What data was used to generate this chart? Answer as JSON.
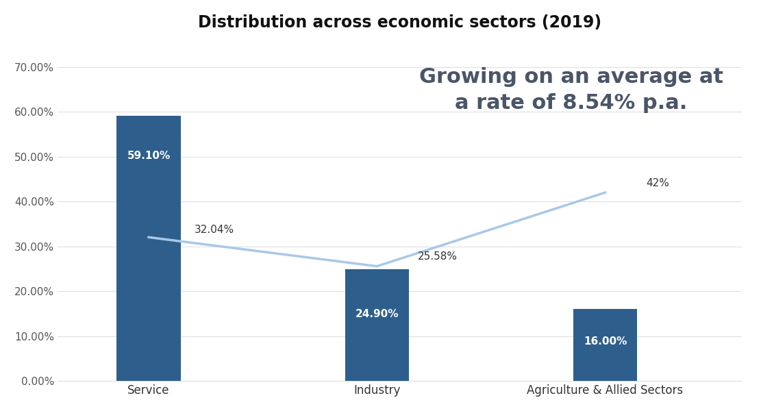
{
  "title": "Distribution across economic sectors (2019)",
  "categories": [
    "Service",
    "Industry",
    "Agriculture & Allied Sectors"
  ],
  "bar_values": [
    59.1,
    24.9,
    16.0
  ],
  "bar_labels": [
    "59.10%",
    "24.90%",
    "16.00%"
  ],
  "line_values": [
    32.04,
    25.58,
    42.0
  ],
  "line_labels": [
    "32.04%",
    "25.58%",
    "42%"
  ],
  "bar_color": "#2E5F8C",
  "line_color": "#A8C8E8",
  "ylim": [
    0,
    75
  ],
  "yticks": [
    0,
    10,
    20,
    30,
    40,
    50,
    60,
    70
  ],
  "ytick_labels": [
    "0.00%",
    "10.00%",
    "20.00%",
    "30.00%",
    "40.00%",
    "50.00%",
    "60.00%",
    "70.00%"
  ],
  "annotation_text": "Growing on an average at\na rate of 8.54% p.a.",
  "annotation_color": "#4A5568",
  "background_color": "#FFFFFF",
  "title_fontsize": 17,
  "bar_label_fontsize": 11,
  "line_label_fontsize": 11,
  "annotation_fontsize": 22,
  "grid_color": "#E0E0E0"
}
